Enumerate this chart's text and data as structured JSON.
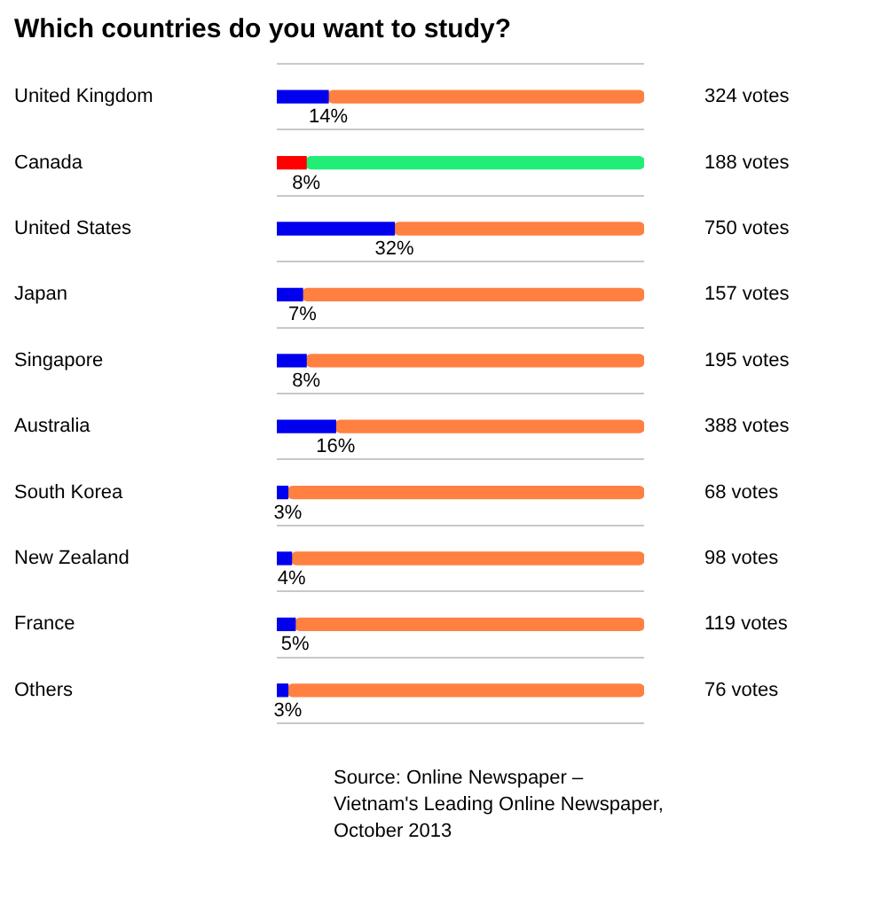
{
  "chart_data": {
    "type": "bar",
    "title": "Which countries do you want to study?",
    "orientation": "horizontal",
    "stacked": true,
    "categories": [
      "United Kingdom",
      "Canada",
      "United States",
      "Japan",
      "Singapore",
      "Australia",
      "South Korea",
      "New Zealand",
      "France",
      "Others"
    ],
    "series": [
      {
        "values": [
          14,
          8,
          32,
          7,
          8,
          16,
          3,
          4,
          5,
          3
        ],
        "colors": [
          "#0000ee",
          "#ff0000",
          "#0000ee",
          "#0000ee",
          "#0000ee",
          "#0000ee",
          "#0000ee",
          "#0000ee",
          "#0000ee",
          "#0000ee"
        ],
        "value_labels": [
          "14%",
          "8%",
          "32%",
          "7%",
          "8%",
          "16%",
          "3%",
          "4%",
          "5%",
          "3%"
        ]
      },
      {
        "values": [
          86,
          92,
          68,
          93,
          92,
          84,
          97,
          96,
          95,
          97
        ],
        "colors": [
          "#ff8040",
          "#22ee77",
          "#ff8040",
          "#ff8040",
          "#ff8040",
          "#ff8040",
          "#ff8040",
          "#ff8040",
          "#ff8040",
          "#ff8040"
        ]
      }
    ],
    "xlim": [
      0,
      100
    ],
    "tick_labels": "y",
    "grid": "y",
    "legend": false,
    "annotations": [
      "324 votes",
      "188 votes",
      "750 votes",
      "157 votes",
      "195 votes",
      "388 votes",
      "68 votes",
      "98 votes",
      "119 votes",
      "76 votes",
      "Source: Online Newspaper – Vietnam's Leading Online Newspaper, October 2013"
    ]
  }
}
